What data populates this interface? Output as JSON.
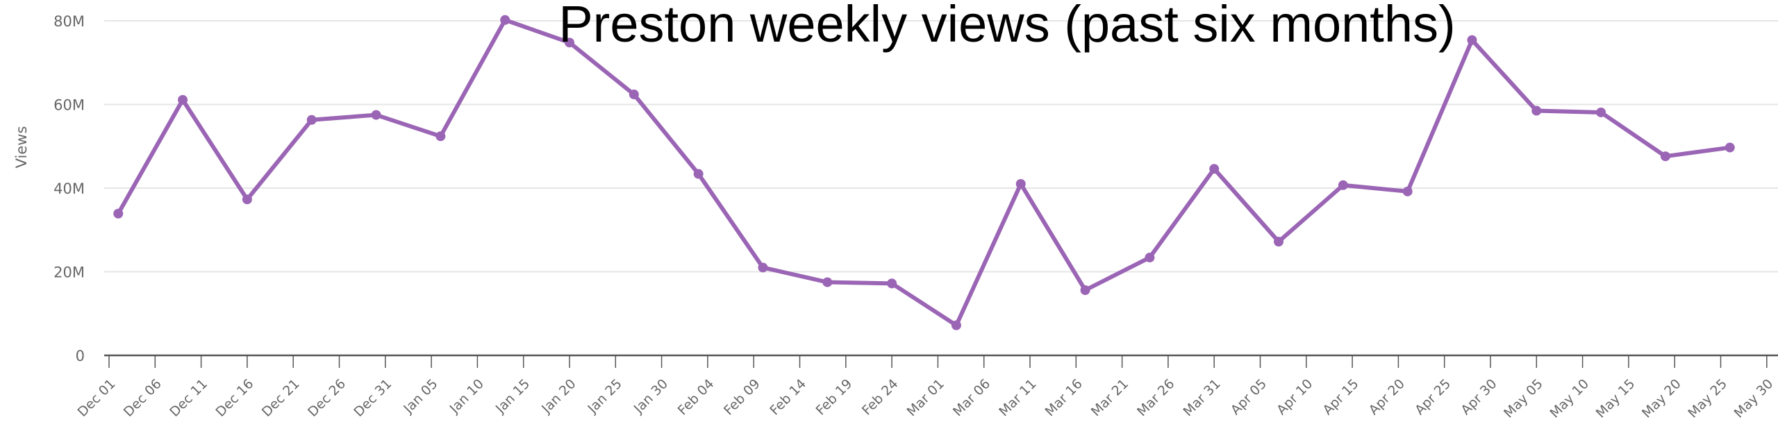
{
  "chart_data": {
    "type": "line",
    "title": "Preston weekly views (past six months)",
    "xlabel": "",
    "ylabel": "Views",
    "ylim": [
      0,
      80000000
    ],
    "yticks": [
      0,
      20000000,
      40000000,
      60000000,
      80000000
    ],
    "ytick_labels": [
      "0",
      "20M",
      "40M",
      "60M",
      "80M"
    ],
    "xtick_labels": [
      "Dec 01",
      "Dec 06",
      "Dec 11",
      "Dec 16",
      "Dec 21",
      "Dec 26",
      "Dec 31",
      "Jan 05",
      "Jan 10",
      "Jan 15",
      "Jan 20",
      "Jan 25",
      "Jan 30",
      "Feb 04",
      "Feb 09",
      "Feb 14",
      "Feb 19",
      "Feb 24",
      "Mar 01",
      "Mar 06",
      "Mar 11",
      "Mar 16",
      "Mar 21",
      "Mar 26",
      "Mar 31",
      "Apr 05",
      "Apr 10",
      "Apr 15",
      "Apr 20",
      "Apr 25",
      "Apr 30",
      "May 05",
      "May 10",
      "May 15",
      "May 20",
      "May 25",
      "May 30"
    ],
    "grid": true,
    "color": "#9b65b5",
    "x": [
      "Dec 02",
      "Dec 09",
      "Dec 16",
      "Dec 23",
      "Dec 30",
      "Jan 06",
      "Jan 13",
      "Jan 20",
      "Jan 27",
      "Feb 03",
      "Feb 10",
      "Feb 17",
      "Feb 24",
      "Mar 03",
      "Mar 10",
      "Mar 17",
      "Mar 24",
      "Mar 31",
      "Apr 07",
      "Apr 14",
      "Apr 21",
      "Apr 28",
      "May 05",
      "May 12",
      "May 19",
      "May 26"
    ],
    "values": [
      33900000,
      61100000,
      37300000,
      56300000,
      57500000,
      52400000,
      80200000,
      74800000,
      62400000,
      43400000,
      21000000,
      17500000,
      17200000,
      7200000,
      41000000,
      15600000,
      23400000,
      44600000,
      27200000,
      40700000,
      39200000,
      75400000,
      58500000,
      58100000,
      47600000,
      49700000
    ]
  }
}
